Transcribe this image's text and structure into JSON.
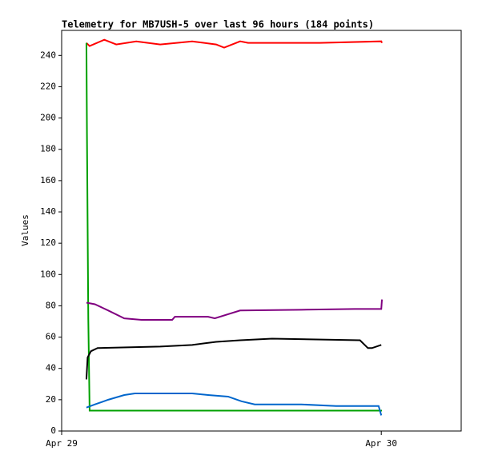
{
  "chart_data": {
    "type": "line",
    "title": "Telemetry for MB7USH-5 over last 96 hours (184 points)",
    "y_label": "Values",
    "xlim": [
      0,
      30
    ],
    "xticks": [
      {
        "value": 0,
        "label": "Apr 29"
      },
      {
        "value": 24,
        "label": "Apr 30"
      }
    ],
    "ylim": [
      0,
      256
    ],
    "yticks": [
      0,
      20,
      40,
      60,
      80,
      100,
      120,
      140,
      160,
      180,
      200,
      220,
      240
    ],
    "grid": false,
    "series": [
      {
        "color": "#ff0000",
        "x": [
          1.86,
          2.1,
          3.2,
          4.1,
          5.6,
          7.4,
          9.8,
          11.6,
          12.2,
          13.4,
          14,
          19.4,
          24,
          24.05
        ],
        "values": [
          248,
          246,
          250,
          247,
          249,
          247,
          249,
          247,
          245,
          249,
          248,
          248,
          249,
          248
        ]
      },
      {
        "color": "#00a000",
        "x": [
          1.86,
          1.9,
          2.0,
          2.1,
          24,
          24.05
        ],
        "values": [
          248,
          190,
          72,
          13,
          13,
          13
        ]
      },
      {
        "color": "#800080",
        "x": [
          1.86,
          2.5,
          3.5,
          4.7,
          6,
          8.3,
          8.5,
          11,
          11.5,
          13.4,
          18,
          22,
          24,
          24.05
        ],
        "values": [
          82,
          81,
          77,
          72,
          71,
          71,
          73,
          73,
          72,
          77,
          77.5,
          78,
          78,
          84
        ]
      },
      {
        "color": "#000000",
        "x": [
          1.86,
          1.95,
          2.2,
          2.7,
          7.4,
          9.8,
          11.6,
          13.4,
          15.8,
          22.4,
          23,
          23.3,
          24
        ],
        "values": [
          33,
          47,
          51,
          53,
          54,
          55,
          57,
          58,
          59,
          58,
          53,
          53,
          55
        ]
      },
      {
        "color": "#0066cc",
        "x": [
          1.86,
          2.5,
          3.5,
          4.7,
          5.5,
          9.8,
          11,
          12.5,
          13.5,
          14.5,
          18,
          20.6,
          23.8,
          24
        ],
        "values": [
          15,
          17,
          20,
          23,
          24,
          24,
          23,
          22,
          19,
          17,
          17,
          16,
          16,
          10
        ]
      }
    ]
  }
}
